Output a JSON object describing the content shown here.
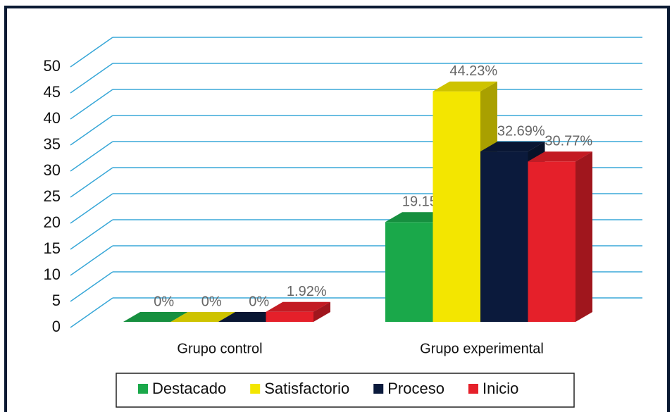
{
  "chart_data": {
    "type": "bar3d",
    "categories": [
      "Grupo control",
      "Grupo experimental"
    ],
    "series": [
      {
        "name": "Destacado",
        "color": "#1aa84a",
        "values": [
          0,
          19.15
        ],
        "value_labels": [
          "0%",
          "19.15%"
        ]
      },
      {
        "name": "Satisfactorio",
        "color": "#f3e600",
        "values": [
          0,
          44.23
        ],
        "value_labels": [
          "0%",
          "44.23%"
        ]
      },
      {
        "name": "Proceso",
        "color": "#0b1a3c",
        "values": [
          0,
          32.69
        ],
        "value_labels": [
          "0%",
          "32.69%"
        ]
      },
      {
        "name": "Inicio",
        "color": "#e5202a",
        "values": [
          1.92,
          30.77
        ],
        "value_labels": [
          "1.92%",
          "30.77%"
        ]
      }
    ],
    "ylim": [
      0,
      50
    ],
    "yticks": [
      0,
      5,
      10,
      15,
      20,
      25,
      30,
      35,
      40,
      45,
      50
    ],
    "grid": true,
    "legend": "bottom"
  }
}
